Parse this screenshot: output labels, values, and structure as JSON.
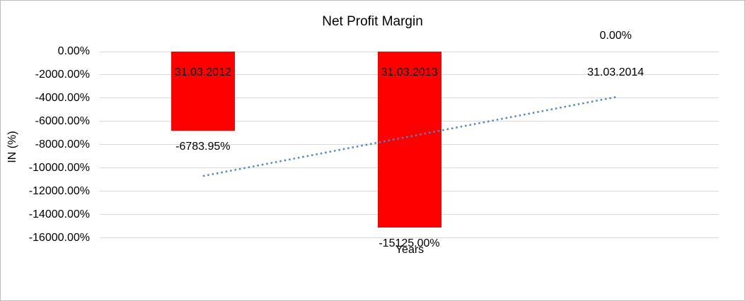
{
  "chart": {
    "background": "#FFFFFF",
    "border_color": "#BDBDBD"
  },
  "chart_data": {
    "type": "bar",
    "title": "Net Profit Margin",
    "xlabel": "Years",
    "ylabel": "IN (%)",
    "categories": [
      "31.03.2012",
      "31.03.2013",
      "31.03.2014"
    ],
    "series": [
      {
        "name": "Net Profit Margin",
        "color": "#FF0000",
        "values": [
          -6783.95,
          -15125.0,
          0
        ]
      }
    ],
    "data_labels": [
      "-6783.95%",
      "-15125.00%",
      "0.00%"
    ],
    "y_ticks": [
      {
        "value": 0,
        "label": "0.00%"
      },
      {
        "value": -2000,
        "label": "-2000.00%"
      },
      {
        "value": -4000,
        "label": "-4000.00%"
      },
      {
        "value": -6000,
        "label": "-6000.00%"
      },
      {
        "value": -8000,
        "label": "-8000.00%"
      },
      {
        "value": -10000,
        "label": "-10000.00%"
      },
      {
        "value": -12000,
        "label": "-12000.00%"
      },
      {
        "value": -14000,
        "label": "-14000.00%"
      },
      {
        "value": -16000,
        "label": "-16000.00%"
      }
    ],
    "ylim": [
      -16000,
      0
    ],
    "grid": true,
    "gridline_color": "#D9D9D9",
    "legend": "none",
    "trendline": {
      "type": "linear",
      "style": "dotted",
      "color": "#4E87C7",
      "start_value": -10694.96,
      "end_value": -3911.01
    }
  }
}
